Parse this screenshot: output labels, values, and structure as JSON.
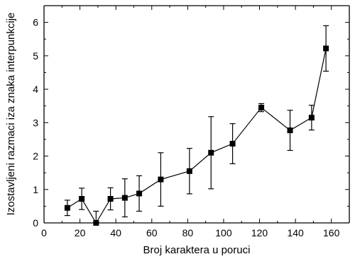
{
  "chart_data": {
    "type": "scatter",
    "title": "",
    "xlabel": "Broj karaktera u poruci",
    "ylabel": "Izostavljeni razmaci iza znaka interpunkcije",
    "xlim": [
      0,
      170
    ],
    "ylim": [
      0,
      6.5
    ],
    "xticks": [
      "0",
      "20",
      "40",
      "60",
      "80",
      "100",
      "120",
      "140",
      "160"
    ],
    "yticks": [
      "0",
      "1",
      "2",
      "3",
      "4",
      "5",
      "6"
    ],
    "grid": false,
    "legend": "none",
    "marker": "square",
    "connected": true,
    "color": "#000000",
    "series": [
      {
        "x": [
          13,
          21,
          29,
          37,
          45,
          53,
          65,
          81,
          93,
          105,
          121,
          137,
          149,
          157
        ],
        "y": [
          0.45,
          0.72,
          0.0,
          0.72,
          0.75,
          0.88,
          1.3,
          1.55,
          2.1,
          2.37,
          3.45,
          2.77,
          3.15,
          5.22
        ],
        "error": [
          0.23,
          0.32,
          0.35,
          0.33,
          0.57,
          0.53,
          0.8,
          0.68,
          1.08,
          0.6,
          0.12,
          0.6,
          0.37,
          0.68
        ]
      }
    ]
  }
}
